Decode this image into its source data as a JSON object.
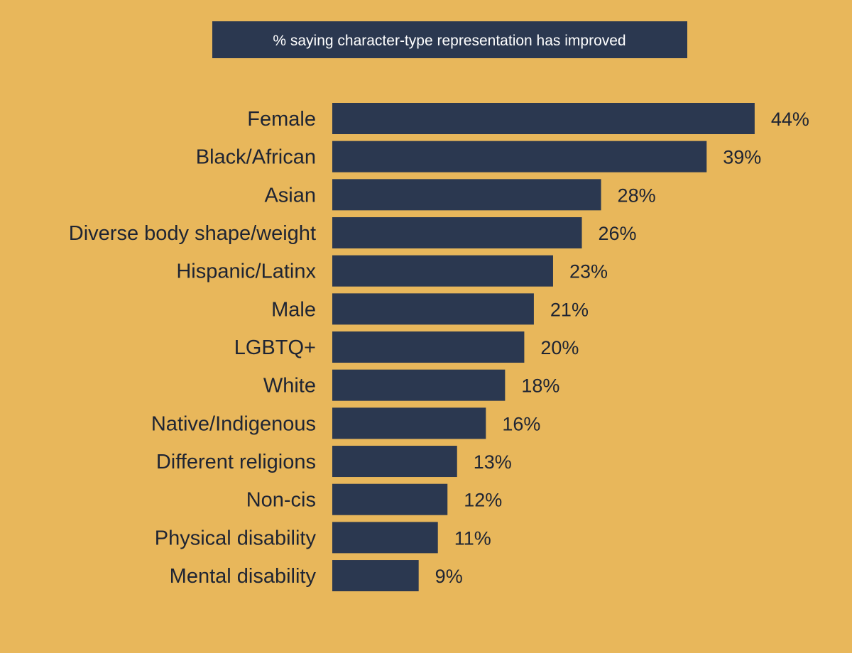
{
  "chart_data": {
    "type": "bar",
    "orientation": "horizontal",
    "title": "% saying character-type representation has improved",
    "categories": [
      "Female",
      "Black/African",
      "Asian",
      "Diverse body shape/weight",
      "Hispanic/Latinx",
      "Male",
      "LGBTQ+",
      "White",
      "Native/Indigenous",
      "Different religions",
      "Non-cis",
      "Physical disability",
      "Mental disability"
    ],
    "values": [
      44,
      39,
      28,
      26,
      23,
      21,
      20,
      18,
      16,
      13,
      12,
      11,
      9
    ],
    "value_labels": [
      "44%",
      "39%",
      "28%",
      "26%",
      "23%",
      "21%",
      "20%",
      "18%",
      "16%",
      "13%",
      "12%",
      "11%",
      "9%"
    ],
    "unit": "%",
    "grid": false,
    "legend": "none",
    "colors": {
      "background": "#E8B75B",
      "bar": "#2B3850",
      "title_background": "#2B3850",
      "title_text": "#FFFFFF",
      "label_text": "#1E2433"
    }
  }
}
